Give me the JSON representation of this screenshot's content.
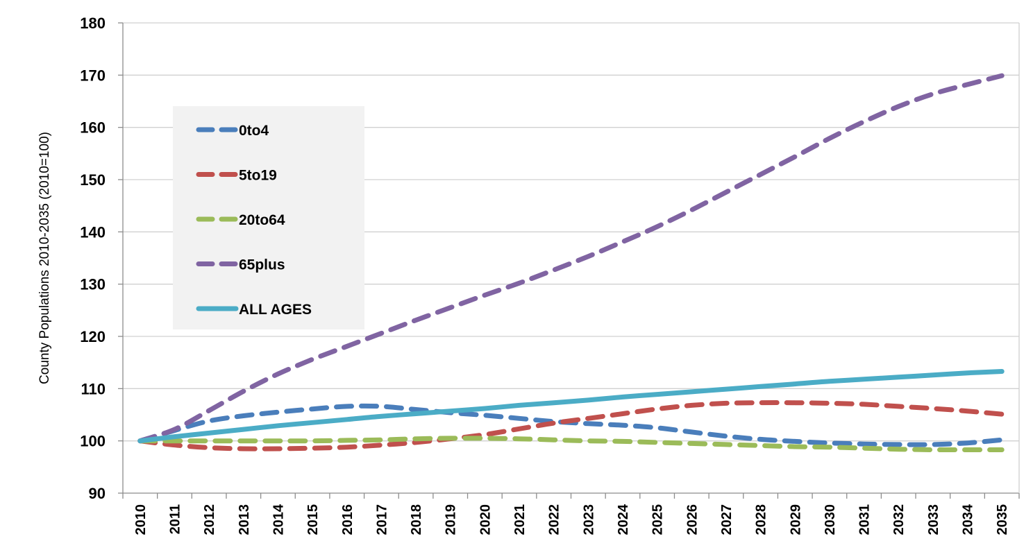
{
  "chart_data": {
    "type": "line",
    "title": "",
    "xlabel": "",
    "ylabel": "County Populations 2010-2035 (2010=100)",
    "x": [
      "2010",
      "2011",
      "2012",
      "2013",
      "2014",
      "2015",
      "2016",
      "2017",
      "2018",
      "2019",
      "2020",
      "2021",
      "2022",
      "2023",
      "2024",
      "2025",
      "2026",
      "2027",
      "2028",
      "2029",
      "2030",
      "2031",
      "2032",
      "2033",
      "2034",
      "2035"
    ],
    "ylim": [
      90,
      180
    ],
    "yticks": [
      "90",
      "100",
      "110",
      "120",
      "130",
      "140",
      "150",
      "160",
      "170",
      "180"
    ],
    "grid": true,
    "legend_position": "upper-left",
    "series": [
      {
        "name": "0to4",
        "color": "#4a7ebb",
        "style": "dashed",
        "values": [
          100,
          102.0,
          103.8,
          104.8,
          105.5,
          106.1,
          106.6,
          106.6,
          106.0,
          105.4,
          104.9,
          104.3,
          103.7,
          103.3,
          103.0,
          102.5,
          101.7,
          100.9,
          100.3,
          99.9,
          99.6,
          99.4,
          99.3,
          99.3,
          99.6,
          100.2
        ]
      },
      {
        "name": "5to19",
        "color": "#c0504d",
        "style": "dashed",
        "values": [
          100,
          99.2,
          98.7,
          98.5,
          98.5,
          98.6,
          98.8,
          99.2,
          99.7,
          100.4,
          101.2,
          102.3,
          103.4,
          104.3,
          105.2,
          106.1,
          106.8,
          107.2,
          107.3,
          107.3,
          107.2,
          107.0,
          106.6,
          106.2,
          105.7,
          105.1
        ]
      },
      {
        "name": "20to64",
        "color": "#9bbb59",
        "style": "dashed",
        "values": [
          100,
          100.0,
          100.0,
          100.0,
          100.0,
          100.0,
          100.1,
          100.2,
          100.4,
          100.5,
          100.5,
          100.4,
          100.2,
          100.0,
          99.9,
          99.7,
          99.5,
          99.3,
          99.1,
          98.9,
          98.8,
          98.6,
          98.4,
          98.3,
          98.3,
          98.3
        ]
      },
      {
        "name": "65plus",
        "color": "#8064a2",
        "style": "dashed",
        "values": [
          100,
          102.2,
          105.8,
          109.5,
          112.8,
          115.6,
          118.1,
          120.6,
          123.1,
          125.5,
          127.9,
          130.2,
          132.7,
          135.3,
          138.1,
          141.0,
          144.2,
          147.6,
          151.0,
          154.4,
          157.9,
          161.1,
          164.0,
          166.4,
          168.2,
          169.9
        ]
      },
      {
        "name": "ALL AGES",
        "color": "#4bacc6",
        "style": "solid",
        "values": [
          100,
          100.8,
          101.5,
          102.2,
          102.9,
          103.5,
          104.1,
          104.7,
          105.2,
          105.7,
          106.2,
          106.8,
          107.3,
          107.8,
          108.4,
          108.9,
          109.4,
          109.9,
          110.4,
          110.9,
          111.4,
          111.8,
          112.2,
          112.6,
          113.0,
          113.3
        ]
      }
    ]
  }
}
